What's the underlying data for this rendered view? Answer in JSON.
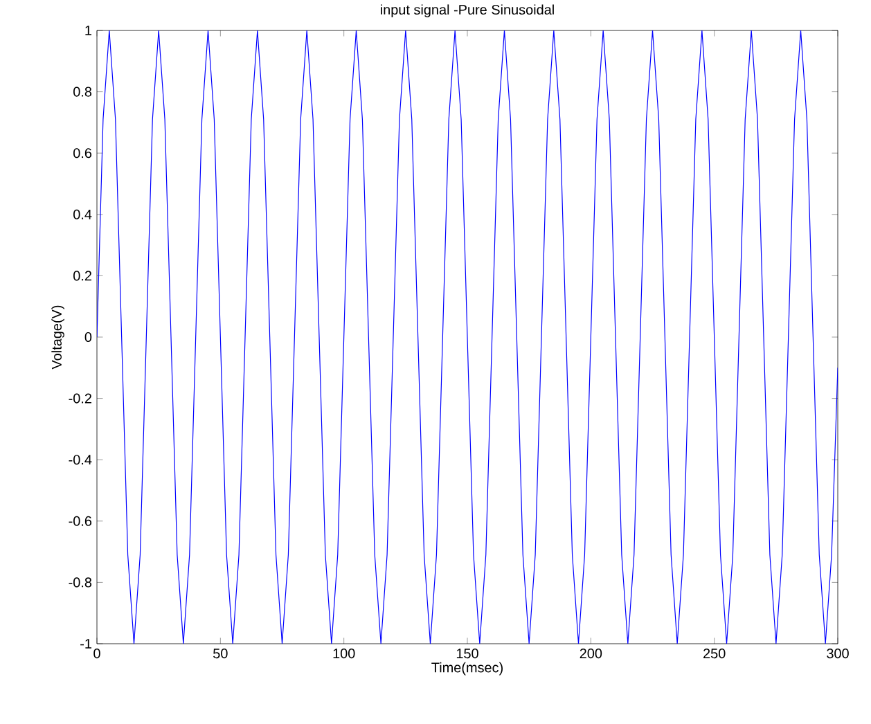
{
  "chart_data": {
    "type": "line",
    "title": "input signal -Pure Sinusoidal",
    "xlabel": "Time(msec)",
    "ylabel": "Voltage(V)",
    "xlim": [
      0,
      300
    ],
    "ylim": [
      -1,
      1
    ],
    "xticks": [
      0,
      50,
      100,
      150,
      200,
      250,
      300
    ],
    "yticks": [
      -1,
      -0.8,
      -0.6,
      -0.4,
      -0.2,
      0,
      0.2,
      0.4,
      0.6,
      0.8,
      1
    ],
    "grid": false,
    "line_style": "solid",
    "marker": "none",
    "x": [
      0,
      2.5,
      5,
      7.5,
      10,
      12.5,
      15,
      17.5,
      20,
      22.5,
      25,
      27.5,
      30,
      32.5,
      35,
      37.5,
      40,
      42.5,
      45,
      47.5,
      50,
      52.5,
      55,
      57.5,
      60,
      62.5,
      65,
      67.5,
      70,
      72.5,
      75,
      77.5,
      80,
      82.5,
      85,
      87.5,
      90,
      92.5,
      95,
      97.5,
      100,
      102.5,
      105,
      107.5,
      110,
      112.5,
      115,
      117.5,
      120,
      122.5,
      125,
      127.5,
      130,
      132.5,
      135,
      137.5,
      140,
      142.5,
      145,
      147.5,
      150,
      152.5,
      155,
      157.5,
      160,
      162.5,
      165,
      167.5,
      170,
      172.5,
      175,
      177.5,
      180,
      182.5,
      185,
      187.5,
      190,
      192.5,
      195,
      197.5,
      200,
      202.5,
      205,
      207.5,
      210,
      212.5,
      215,
      217.5,
      220,
      222.5,
      225,
      227.5,
      230,
      232.5,
      235,
      237.5,
      240,
      242.5,
      245,
      247.5,
      250,
      252.5,
      255,
      257.5,
      260,
      262.5,
      265,
      267.5,
      270,
      272.5,
      275,
      277.5,
      280,
      282.5,
      285,
      287.5,
      290,
      292.5,
      295,
      297.5,
      300
    ],
    "series": [
      {
        "color": "#0000ff",
        "values": [
          0,
          0.71,
          1,
          0.71,
          0,
          -0.71,
          -1,
          -0.71,
          0,
          0.71,
          1,
          0.71,
          0,
          -0.71,
          -1,
          -0.71,
          0,
          0.71,
          1,
          0.71,
          0,
          -0.71,
          -1,
          -0.71,
          0,
          0.71,
          1,
          0.71,
          0,
          -0.71,
          -1,
          -0.71,
          0,
          0.71,
          1,
          0.71,
          0,
          -0.71,
          -1,
          -0.71,
          0,
          0.71,
          1,
          0.71,
          0,
          -0.71,
          -1,
          -0.71,
          0,
          0.71,
          1,
          0.71,
          0,
          -0.71,
          -1,
          -0.71,
          0,
          0.71,
          1,
          0.71,
          0,
          -0.71,
          -1,
          -0.71,
          0,
          0.71,
          1,
          0.71,
          0,
          -0.71,
          -1,
          -0.71,
          0,
          0.71,
          1,
          0.71,
          0,
          -0.71,
          -1,
          -0.71,
          0,
          0.71,
          1,
          0.71,
          0,
          -0.71,
          -1,
          -0.71,
          0,
          0.71,
          1,
          0.71,
          0,
          -0.71,
          -1,
          -0.71,
          0,
          0.71,
          1,
          0.71,
          0,
          -0.71,
          -1,
          -0.71,
          0,
          0.71,
          1,
          0.71,
          0,
          -0.71,
          -1,
          -0.71,
          0,
          0.71,
          1,
          0.71,
          0,
          -0.71,
          -1,
          -0.71,
          -0.1
        ]
      }
    ]
  }
}
